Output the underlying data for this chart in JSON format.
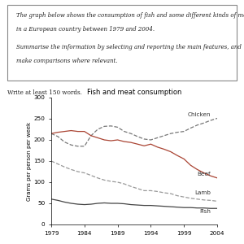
{
  "title": "Fish and meat consumption",
  "ylabel": "Grams per person per week",
  "prompt_line1": "The graph below shows the consumption of fish and some different kinds of meat",
  "prompt_line2": "in a European country between 1979 and 2004.",
  "prompt_line3": "Summarise the information by selecting and reporting the main features, and",
  "prompt_line4": "make comparisons where relevant.",
  "write_text": "Write at least 150 words.",
  "xlim": [
    1979,
    2004
  ],
  "ylim": [
    0,
    300
  ],
  "yticks": [
    0,
    50,
    100,
    150,
    200,
    250,
    300
  ],
  "xticks": [
    1979,
    1984,
    1989,
    1994,
    1999,
    2004
  ],
  "chicken_x": [
    1979,
    1980,
    1981,
    1982,
    1983,
    1984,
    1985,
    1986,
    1987,
    1988,
    1989,
    1990,
    1991,
    1992,
    1993,
    1994,
    1995,
    1996,
    1997,
    1998,
    1999,
    2000,
    2001,
    2002,
    2003,
    2004
  ],
  "chicken_y": [
    215,
    208,
    195,
    188,
    185,
    185,
    210,
    225,
    232,
    233,
    230,
    220,
    215,
    208,
    202,
    200,
    205,
    210,
    215,
    218,
    220,
    228,
    235,
    240,
    246,
    251
  ],
  "beef_x": [
    1979,
    1980,
    1981,
    1982,
    1983,
    1984,
    1985,
    1986,
    1987,
    1988,
    1989,
    1990,
    1991,
    1992,
    1993,
    1994,
    1995,
    1996,
    1997,
    1998,
    1999,
    2000,
    2001,
    2002,
    2003,
    2004
  ],
  "beef_y": [
    215,
    218,
    220,
    222,
    220,
    220,
    210,
    205,
    200,
    198,
    200,
    196,
    194,
    190,
    186,
    190,
    183,
    178,
    172,
    163,
    155,
    140,
    130,
    122,
    115,
    110
  ],
  "lamb_x": [
    1979,
    1980,
    1981,
    1982,
    1983,
    1984,
    1985,
    1986,
    1987,
    1988,
    1989,
    1990,
    1991,
    1992,
    1993,
    1994,
    1995,
    1996,
    1997,
    1998,
    1999,
    2000,
    2001,
    2002,
    2003,
    2004
  ],
  "lamb_y": [
    150,
    143,
    136,
    130,
    125,
    122,
    116,
    110,
    105,
    102,
    100,
    96,
    90,
    85,
    80,
    80,
    78,
    75,
    73,
    68,
    65,
    62,
    60,
    58,
    57,
    55
  ],
  "fish_x": [
    1979,
    1980,
    1981,
    1982,
    1983,
    1984,
    1985,
    1986,
    1987,
    1988,
    1989,
    1990,
    1991,
    1992,
    1993,
    1994,
    1995,
    1996,
    1997,
    1998,
    1999,
    2000,
    2001,
    2002,
    2003,
    2004
  ],
  "fish_y": [
    60,
    57,
    53,
    50,
    48,
    47,
    48,
    50,
    51,
    50,
    50,
    49,
    47,
    46,
    45,
    45,
    44,
    43,
    42,
    41,
    40,
    40,
    39,
    39,
    38,
    38
  ],
  "chicken_color": "#777777",
  "beef_color": "#AA4433",
  "lamb_color": "#999999",
  "fish_color": "#444444",
  "chicken_ls": "--",
  "beef_ls": "-",
  "lamb_ls": "--",
  "fish_ls": "-",
  "linewidth": 0.9
}
